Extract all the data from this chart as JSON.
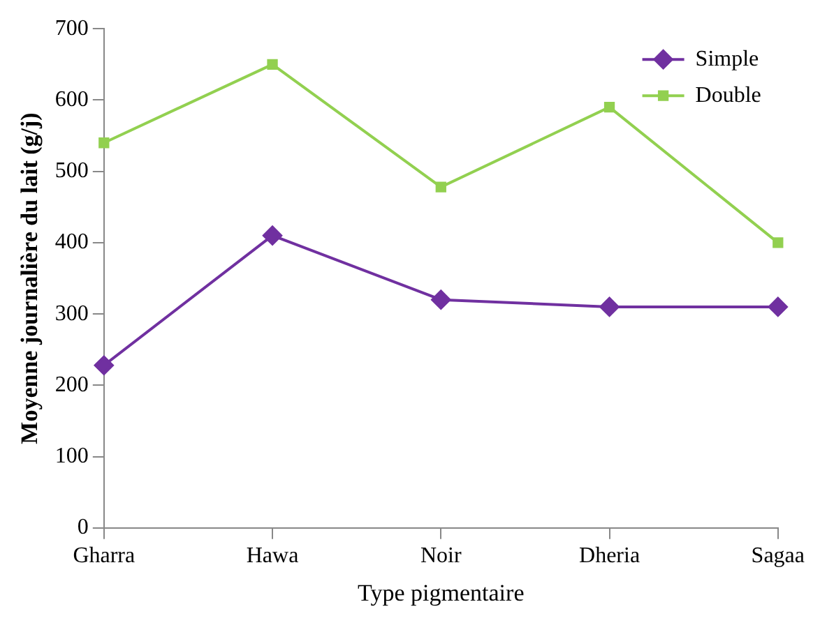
{
  "chart_data": {
    "type": "line",
    "xlabel": "Type pigmentaire",
    "ylabel": "Moyenne journalière du lait (g/j)",
    "categories": [
      "Gharra",
      "Hawa",
      "Noir",
      "Dheria",
      "Sagaa"
    ],
    "series": [
      {
        "name": "Simple",
        "color": "#7030a0",
        "marker": "diamond",
        "values": [
          228,
          410,
          320,
          310,
          310
        ]
      },
      {
        "name": "Double",
        "color": "#92d050",
        "marker": "square",
        "values": [
          540,
          650,
          478,
          590,
          400
        ]
      }
    ],
    "ylim": [
      0,
      700
    ],
    "yticks": [
      0,
      100,
      200,
      300,
      400,
      500,
      600,
      700
    ],
    "grid": false,
    "legend": "top right",
    "line_style": "solid"
  }
}
